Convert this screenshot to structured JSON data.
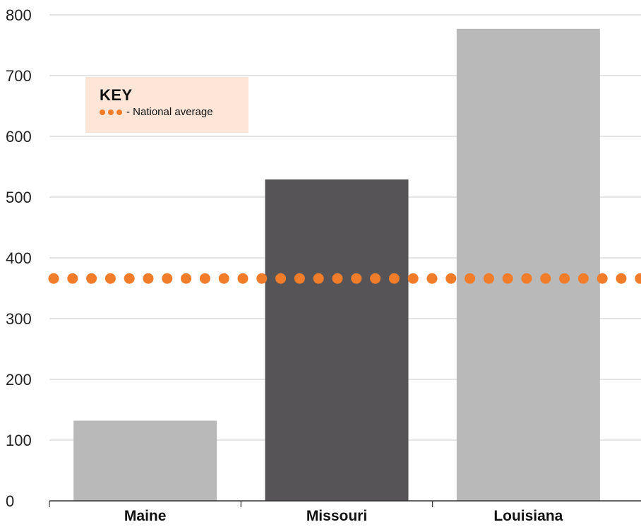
{
  "chart_data": {
    "type": "bar",
    "categories": [
      "Maine",
      "Missouri",
      "Louisiana"
    ],
    "values": [
      132,
      529,
      777
    ],
    "highlight_index": 1,
    "colors": {
      "bar": "#b9b9b9",
      "highlight": "#575457",
      "average": "#f17d2a",
      "grid": "#c8c8c8"
    },
    "ylim": [
      0,
      800
    ],
    "yticks": [
      0,
      100,
      200,
      300,
      400,
      500,
      600,
      700,
      800
    ],
    "grid": true,
    "reference_line": {
      "value": 366,
      "style": "dotted",
      "label": "- National average"
    },
    "legend": {
      "title": "KEY",
      "entry": "- National average",
      "placement": "top-left"
    },
    "title": "",
    "xlabel": "",
    "ylabel": ""
  }
}
